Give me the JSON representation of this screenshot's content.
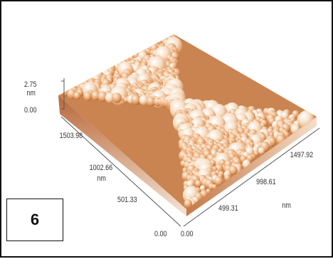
{
  "panel": {
    "label": "6"
  },
  "axes": {
    "z": {
      "unit": "nm",
      "ticks": [
        "2.75",
        "0.00"
      ]
    },
    "y": {
      "unit": "nm",
      "ticks": [
        "1503.98",
        "1002.66",
        "501.33",
        "0.00"
      ]
    },
    "x": {
      "unit": "nm",
      "ticks": [
        "0.00",
        "499.31",
        "998.61",
        "1497.92"
      ]
    }
  },
  "colors": {
    "grain_light": "#fff3e3",
    "grain_mid": "#e8a268",
    "grain_dark": "#7e3a0c",
    "frame": "#111111"
  }
}
